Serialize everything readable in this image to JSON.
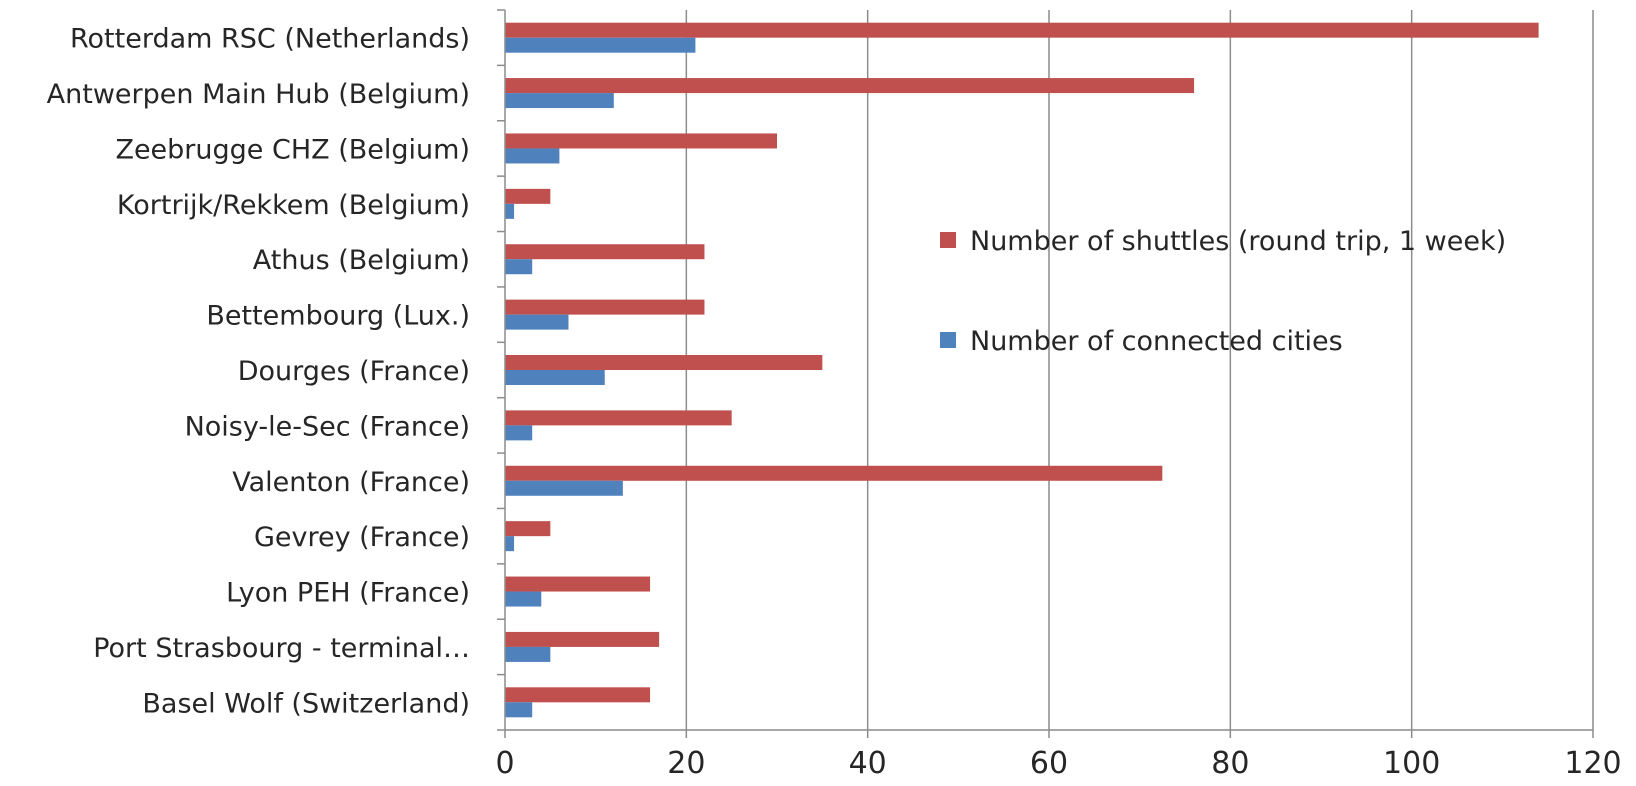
{
  "chart_data": {
    "type": "bar",
    "orientation": "horizontal",
    "categories": [
      "Rotterdam RSC (Netherlands)",
      "Antwerpen Main Hub (Belgium)",
      "Zeebrugge CHZ (Belgium)",
      "Kortrijk/Rekkem (Belgium)",
      "Athus (Belgium)",
      "Bettembourg (Lux.)",
      "Dourges (France)",
      "Noisy-le-Sec (France)",
      "Valenton (France)",
      "Gevrey (France)",
      "Lyon PEH (France)",
      "Port Strasbourg - terminal…",
      "Basel Wolf (Switzerland)"
    ],
    "series": [
      {
        "name": "Number of shuttles (round trip, 1 week)",
        "color": "#C0504D",
        "values": [
          114,
          76,
          30,
          5,
          22,
          22,
          35,
          25,
          72.5,
          5,
          16,
          17,
          16
        ]
      },
      {
        "name": "Number of connected cities",
        "color": "#4F81BD",
        "values": [
          21,
          12,
          6,
          1,
          3,
          7,
          11,
          3,
          13,
          1,
          4,
          5,
          3
        ]
      }
    ],
    "xlim": [
      0,
      120
    ],
    "xticks": [
      "0",
      "20",
      "40",
      "60",
      "80",
      "100",
      "120"
    ],
    "grid": "vertical",
    "legend_position": "right-inside",
    "title": "",
    "xlabel": "",
    "ylabel": ""
  }
}
